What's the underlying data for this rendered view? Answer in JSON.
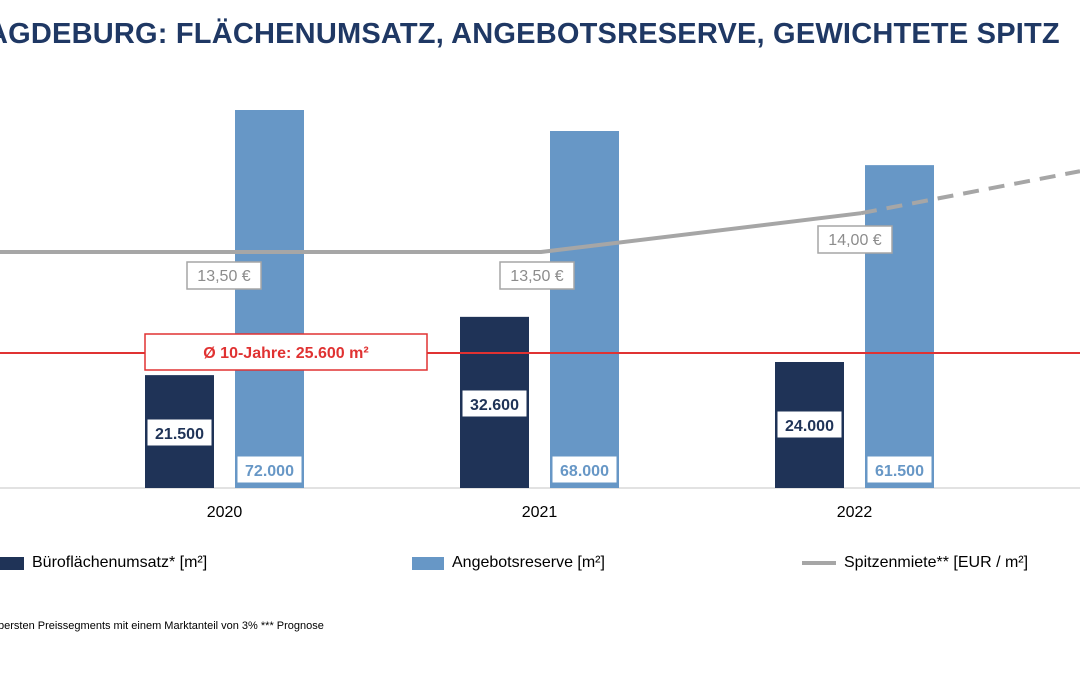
{
  "title": "AGDEBURG: FLÄCHENUMSATZ, ANGEBOTSRESERVE, GEWICHTETE SPITZ",
  "footnote": "bersten Preissegments mit einem Marktanteil von 3% *** Prognose",
  "colors": {
    "title": "#1f3864",
    "umsatz": "#1f3357",
    "reserve": "#6797c6",
    "miete": "#a6a6a6",
    "average": "#e03232"
  },
  "chart_data": {
    "type": "bar",
    "categories": [
      "2020",
      "2021",
      "2022"
    ],
    "series": [
      {
        "name": "Büroflächenumsatz* [m²]",
        "values": [
          21500,
          32600,
          24000
        ],
        "labels": [
          "21.500",
          "32.600",
          "24.000"
        ]
      },
      {
        "name": "Angebotsreserve [m²]",
        "values": [
          72000,
          68000,
          61500
        ],
        "labels": [
          "72.000",
          "68.000",
          "61.500"
        ]
      },
      {
        "name": "Spitzenmiete** [EUR / m²]",
        "type": "line",
        "values": [
          13.5,
          13.5,
          14.0
        ],
        "labels": [
          "13,50 €",
          "13,50 €",
          "14,00 €"
        ],
        "forecast_after": "2022"
      }
    ],
    "average": {
      "value": 25600,
      "label": "Ø 10-Jahre: 25.600 m²"
    },
    "legend": [
      "Büroflächenumsatz* [m²]",
      "Angebotsreserve [m²]",
      "Spitzenmiete** [EUR / m²]"
    ],
    "legend_position": "bottom"
  }
}
